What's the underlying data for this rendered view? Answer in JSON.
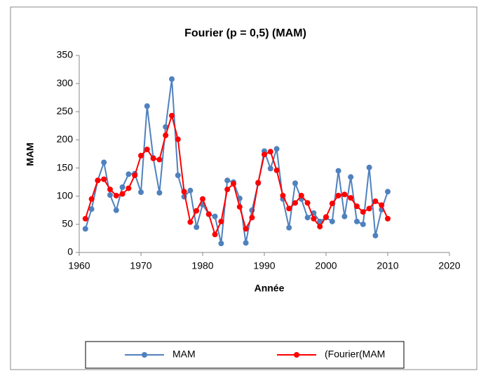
{
  "chart_data": {
    "type": "line",
    "title": "Fourier (p  = 0,5) (MAM)",
    "x_label": "Année",
    "y_label": "MAM",
    "x": [
      1961,
      1962,
      1963,
      1964,
      1965,
      1966,
      1967,
      1968,
      1969,
      1970,
      1971,
      1972,
      1973,
      1974,
      1975,
      1976,
      1977,
      1978,
      1979,
      1980,
      1981,
      1982,
      1983,
      1984,
      1985,
      1986,
      1987,
      1988,
      1989,
      1990,
      1991,
      1992,
      1993,
      1994,
      1995,
      1996,
      1997,
      1998,
      1999,
      2000,
      2001,
      2002,
      2003,
      2004,
      2005,
      2006,
      2007,
      2008,
      2009,
      2010
    ],
    "series": [
      {
        "name": "MAM",
        "color": "#4f81bd",
        "values": [
          42,
          77,
          128,
          160,
          102,
          75,
          116,
          139,
          140,
          107,
          260,
          168,
          106,
          223,
          308,
          137,
          99,
          110,
          45,
          85,
          68,
          64,
          16,
          128,
          125,
          96,
          17,
          75,
          123,
          180,
          149,
          184,
          95,
          44,
          123,
          95,
          62,
          70,
          55,
          62,
          55,
          145,
          64,
          134,
          55,
          50,
          151,
          30,
          76,
          108
        ]
      },
      {
        "name": "(Fourier(MAM",
        "color": "#ff0000",
        "values": [
          60,
          95,
          128,
          130,
          112,
          101,
          104,
          114,
          137,
          172,
          183,
          167,
          165,
          208,
          243,
          201,
          108,
          54,
          74,
          95,
          68,
          32,
          55,
          112,
          122,
          81,
          42,
          62,
          124,
          174,
          179,
          146,
          101,
          78,
          88,
          101,
          88,
          60,
          46,
          63,
          87,
          101,
          103,
          97,
          82,
          72,
          78,
          91,
          84,
          60
        ]
      }
    ],
    "xlim": [
      1960,
      2020
    ],
    "xticks": [
      1960,
      1970,
      1980,
      1990,
      2000,
      2010,
      2020
    ],
    "ylim": [
      0,
      350
    ],
    "yticks": [
      0,
      50,
      100,
      150,
      200,
      250,
      300,
      350
    ],
    "grid": false,
    "legend": "bottom"
  }
}
